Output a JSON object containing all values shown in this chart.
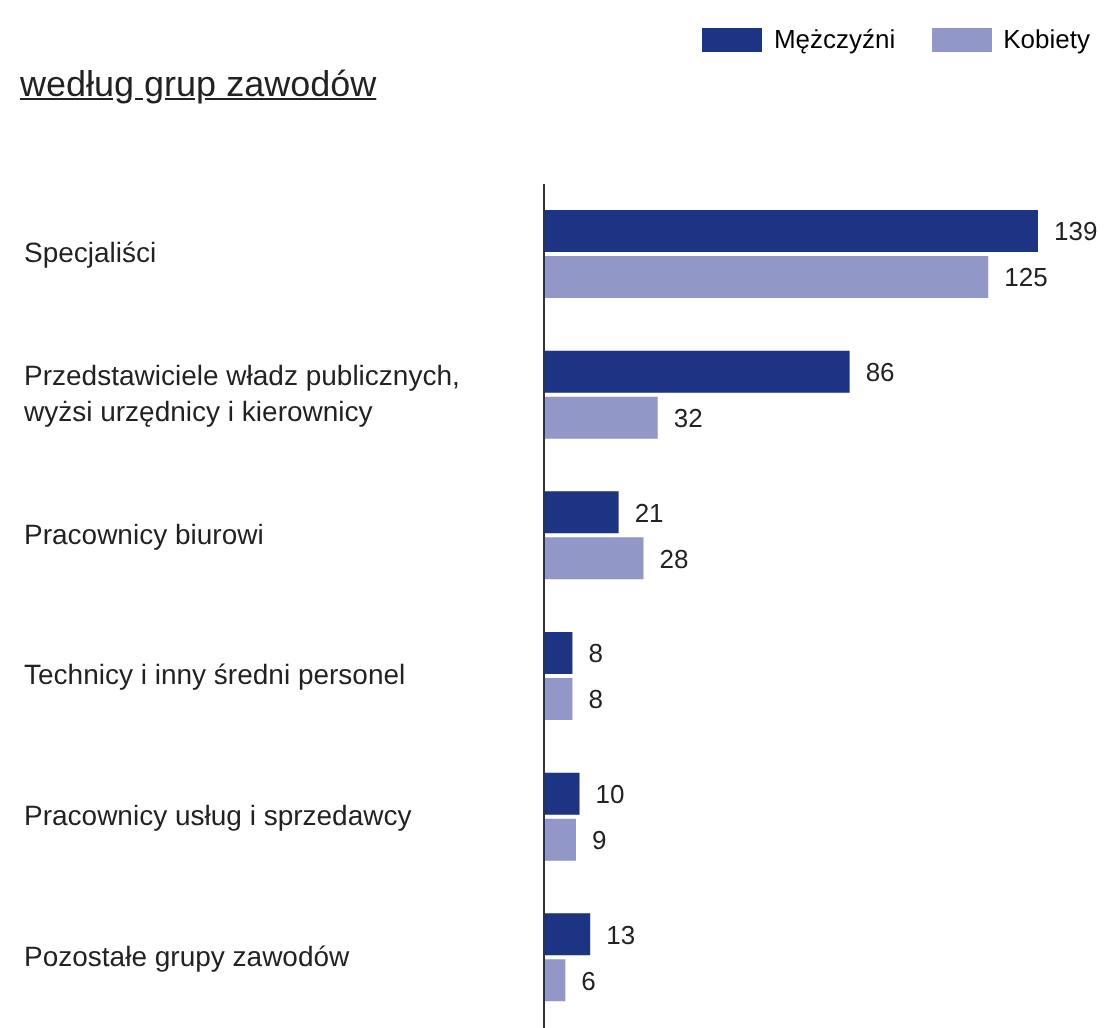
{
  "chart_data": {
    "type": "bar",
    "orientation": "horizontal",
    "title": "według grup zawodów",
    "categories": [
      "Specjaliści",
      "Przedstawiciele władz publicznych, wyżsi urzędnicy i kierownicy",
      "Pracownicy biurowi",
      "Technicy i inny średni personel",
      "Pracownicy usług i sprzedawcy",
      "Pozostałe grupy zawodów"
    ],
    "series": [
      {
        "name": "Mężczyźni",
        "color": "#1c3483",
        "values": [
          139,
          86,
          21,
          8,
          10,
          13
        ]
      },
      {
        "name": "Kobiety",
        "color": "#9198c8",
        "values": [
          125,
          32,
          28,
          8,
          9,
          6
        ]
      }
    ],
    "data_labels": true,
    "legend": "top right",
    "tick_labels": "y",
    "grid": false
  }
}
